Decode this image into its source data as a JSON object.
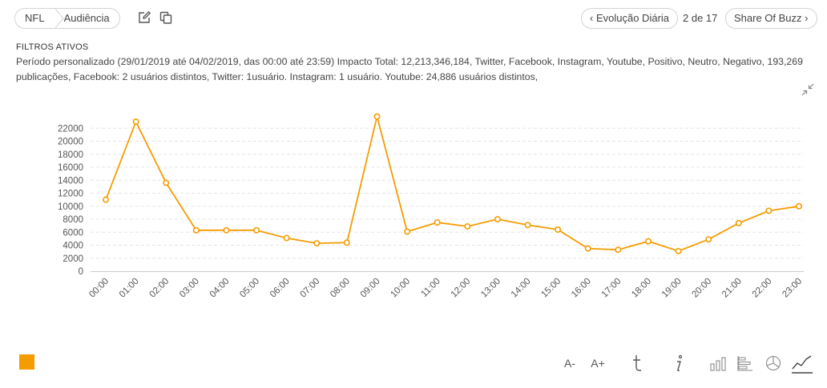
{
  "header": {
    "breadcrumb": [
      "NFL",
      "Audiência"
    ],
    "prev_label": "Evolução Diária",
    "page_indicator": "2 de 17",
    "next_label": "Share Of Buzz"
  },
  "filters": {
    "title": "FILTROS ATIVOS",
    "text": "Período personalizado (29/01/2019 até 04/02/2019, das 00:00 até 23:59) Impacto Total: 12,213,346,184, Twitter, Facebook, Instagram, Youtube, Positivo, Neutro, Negativo, 193,269 publicações, Facebook: 2 usuários distintos, Twitter: 1usuário. Instagram: 1 usuário. Youtube: 24,886 usuários distintos,"
  },
  "toolbar": {
    "font_decrease": "A-",
    "font_increase": "A+",
    "icons": [
      "edit-icon",
      "copy-icon",
      "collapse-icon",
      "tumblr-icon",
      "info-icon",
      "bar-chart-icon",
      "horizontal-bar-icon",
      "pie-chart-icon",
      "line-chart-icon"
    ]
  },
  "colors": {
    "series": "#f59c00",
    "grid": "#e6e6e6",
    "text": "#555555"
  },
  "chart_data": {
    "type": "line",
    "categories": [
      "00:00",
      "01:00",
      "02:00",
      "03:00",
      "04:00",
      "05:00",
      "06:00",
      "07:00",
      "08:00",
      "09:00",
      "10:00",
      "11:00",
      "12:00",
      "13:00",
      "14:00",
      "15:00",
      "16:00",
      "17:00",
      "18:00",
      "19:00",
      "20:00",
      "21:00",
      "22:00",
      "23:00"
    ],
    "series": [
      {
        "values": [
          11000,
          23000,
          13600,
          6300,
          6300,
          6300,
          5100,
          4300,
          4400,
          23800,
          6100,
          7500,
          6900,
          8000,
          7100,
          6400,
          3500,
          3300,
          4600,
          3100,
          4900,
          7400,
          9300,
          10000
        ],
        "color": "#f59c00"
      }
    ],
    "yticks": [
      0,
      2000,
      4000,
      6000,
      8000,
      10000,
      12000,
      14000,
      16000,
      18000,
      20000,
      22000
    ],
    "ylim": [
      0,
      24000
    ],
    "grid": true,
    "legend": "bottom-left"
  }
}
